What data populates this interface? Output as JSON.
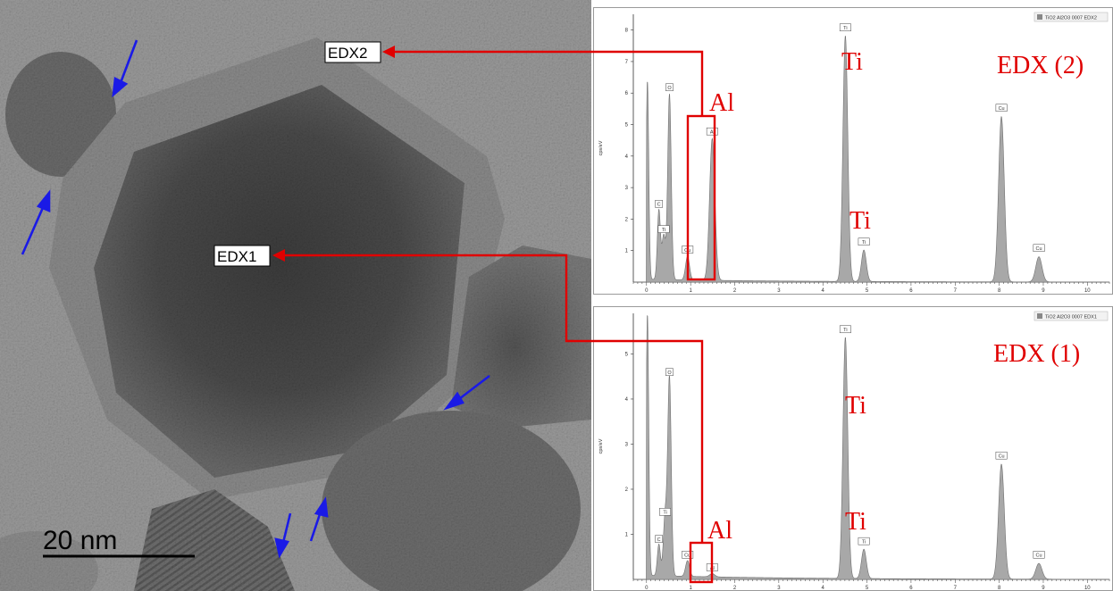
{
  "tem": {
    "scale_bar_label": "20 nm",
    "edx1_label": "EDX1",
    "edx2_label": "EDX2"
  },
  "chart_data": [
    {
      "type": "line",
      "panel_label": "EDX (2)",
      "legend": "TiO2 Al2O3 0007 EDX2",
      "ylabel": "cps/eV",
      "xlim": [
        -0.3,
        10.5
      ],
      "ylim": [
        0,
        8.5
      ],
      "x_ticks": [
        0,
        1,
        2,
        3,
        4,
        5,
        6,
        7,
        8,
        9,
        10
      ],
      "y_ticks": [
        1,
        2,
        3,
        4,
        5,
        6,
        7,
        8
      ],
      "series_color": "#a8a8a8",
      "peaks": [
        {
          "x": 0.02,
          "y": 6.3,
          "width": 0.03,
          "tag": ""
        },
        {
          "x": 0.28,
          "y": 2.2,
          "width": 0.035,
          "tag": "C"
        },
        {
          "x": 0.39,
          "y": 1.4,
          "width": 0.04,
          "tag": "Ti"
        },
        {
          "x": 0.52,
          "y": 5.9,
          "width": 0.04,
          "tag": "O"
        },
        {
          "x": 0.93,
          "y": 0.75,
          "width": 0.045,
          "tag": "Cu"
        },
        {
          "x": 1.49,
          "y": 4.5,
          "width": 0.06,
          "tag": "Al"
        },
        {
          "x": 4.51,
          "y": 7.8,
          "width": 0.055,
          "tag": "Ti"
        },
        {
          "x": 4.93,
          "y": 1.0,
          "width": 0.055,
          "tag": "Ti"
        },
        {
          "x": 8.05,
          "y": 5.25,
          "width": 0.065,
          "tag": "Cu"
        },
        {
          "x": 8.9,
          "y": 0.8,
          "width": 0.07,
          "tag": "Cu"
        }
      ],
      "annotations": [
        {
          "text": "Ti",
          "peak": 6
        },
        {
          "text": "Ti",
          "peak": 7
        },
        {
          "text": "Al",
          "peak": 5
        }
      ]
    },
    {
      "type": "line",
      "panel_label": "EDX (1)",
      "legend": "TiO2 Al2O3 0007 EDX1",
      "ylabel": "cps/eV",
      "xlim": [
        -0.3,
        10.5
      ],
      "ylim": [
        0,
        5.9
      ],
      "x_ticks": [
        0,
        1,
        2,
        3,
        4,
        5,
        6,
        7,
        8,
        9,
        10
      ],
      "y_ticks": [
        1,
        2,
        3,
        4,
        5
      ],
      "series_color": "#a8a8a8",
      "peaks": [
        {
          "x": 0.02,
          "y": 5.8,
          "width": 0.03,
          "tag": ""
        },
        {
          "x": 0.28,
          "y": 0.7,
          "width": 0.035,
          "tag": "C"
        },
        {
          "x": 0.42,
          "y": 1.3,
          "width": 0.04,
          "tag": "Ti"
        },
        {
          "x": 0.52,
          "y": 4.4,
          "width": 0.04,
          "tag": "O"
        },
        {
          "x": 0.93,
          "y": 0.35,
          "width": 0.045,
          "tag": "Cu"
        },
        {
          "x": 1.49,
          "y": 0.07,
          "width": 0.06,
          "tag": "Al"
        },
        {
          "x": 4.51,
          "y": 5.35,
          "width": 0.055,
          "tag": "Ti"
        },
        {
          "x": 4.93,
          "y": 0.65,
          "width": 0.055,
          "tag": "Ti"
        },
        {
          "x": 8.05,
          "y": 2.55,
          "width": 0.065,
          "tag": "Cu"
        },
        {
          "x": 8.9,
          "y": 0.35,
          "width": 0.07,
          "tag": "Cu"
        }
      ],
      "annotations": [
        {
          "text": "Ti",
          "peak": 6
        },
        {
          "text": "Ti",
          "peak": 7
        },
        {
          "text": "Al",
          "peak": 5
        }
      ]
    }
  ]
}
